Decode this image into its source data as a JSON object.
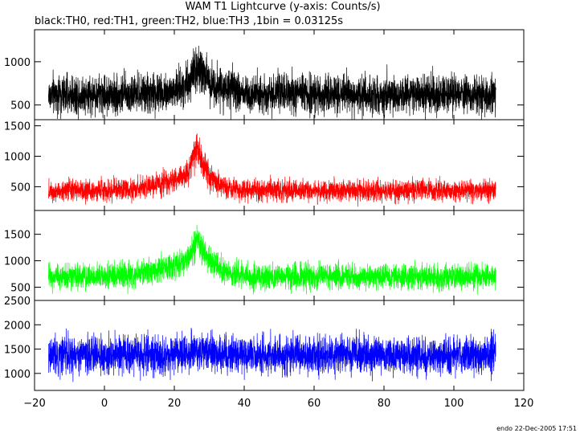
{
  "chart_data": {
    "type": "line",
    "title": "WAM T1 Lightcurve (y-axis: Counts/s)",
    "subtitle": "black:TH0, red:TH1, green:TH2, blue:TH3 ,1bin = 0.03125s",
    "footer": "endo 22-Dec-2005 17:51",
    "xlim": [
      -20,
      120
    ],
    "x_ticks": [
      -20,
      0,
      20,
      40,
      60,
      80,
      100,
      120
    ],
    "x_tick_labels": [
      "−20",
      "0",
      "20",
      "40",
      "60",
      "80",
      "100",
      "120"
    ],
    "x_range_data": [
      -16,
      112
    ],
    "grid": false,
    "panels": [
      {
        "name": "TH0",
        "color": "#000000",
        "ylim": [
          330,
          1370
        ],
        "y_ticks": [
          500,
          1000
        ],
        "baseline": 620,
        "noise": 110,
        "peak": {
          "x": 26.5,
          "height": 330,
          "rise": 3.5,
          "decay": 5
        }
      },
      {
        "name": "TH1",
        "color": "#ff0000",
        "ylim": [
          110,
          1600
        ],
        "y_ticks": [
          500,
          1000,
          1500
        ],
        "baseline": 440,
        "noise": 85,
        "hump": {
          "x": 20,
          "height": 130,
          "width": 9
        },
        "peak": {
          "x": 26.5,
          "height": 680,
          "rise": 2.2,
          "decay": 3
        }
      },
      {
        "name": "TH2",
        "color": "#00ff00",
        "ylim": [
          250,
          1950
        ],
        "y_ticks": [
          500,
          1000,
          1500
        ],
        "baseline": 700,
        "noise": 115,
        "hump": {
          "x": 18,
          "height": 130,
          "width": 10
        },
        "peak": {
          "x": 26.5,
          "height": 680,
          "rise": 3,
          "decay": 4
        }
      },
      {
        "name": "TH3",
        "color": "#0000ff",
        "ylim": [
          650,
          2500
        ],
        "y_ticks": [
          1000,
          1500,
          2000,
          2500
        ],
        "baseline": 1380,
        "noise": 190,
        "peak": {
          "x": 26.5,
          "height": 90,
          "rise": 3,
          "decay": 5
        }
      }
    ]
  }
}
